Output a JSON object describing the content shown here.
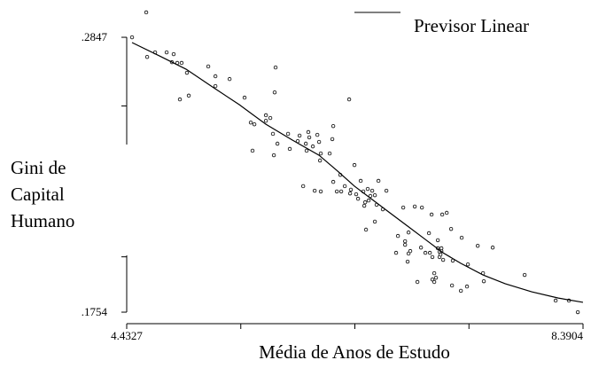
{
  "chart_data": {
    "type": "scatter",
    "xlabel": "Média de Anos de Estudo",
    "ylabel": [
      "Gini de",
      "Capital",
      "Humano"
    ],
    "xlim": [
      4.4327,
      8.3904
    ],
    "ylim": [
      0.171,
      0.296
    ],
    "xticks": [
      {
        "value": 4.4327,
        "label": "4.4327"
      },
      {
        "value": 5.4221,
        "label": null
      },
      {
        "value": 6.4115,
        "label": null
      },
      {
        "value": 7.401,
        "label": null
      },
      {
        "value": 8.3904,
        "label": "8.3904"
      }
    ],
    "yticks": [
      {
        "value": 0.2847,
        "label": ".2847"
      },
      {
        "value": 0.2574,
        "label": null
      },
      {
        "value": 0.1974,
        "label": null
      },
      {
        "value": 0.1754,
        "label": ".1754"
      }
    ],
    "series": [
      {
        "kind": "points",
        "color": "#000000",
        "x": [
          4.479,
          4.602,
          4.61,
          4.679,
          4.779,
          4.825,
          4.84,
          4.871,
          4.909,
          4.955,
          4.894,
          4.971,
          5.14,
          5.202,
          5.202,
          5.325,
          5.455,
          5.724,
          5.716,
          5.509,
          5.54,
          5.64,
          5.678,
          5.64,
          5.524,
          5.701,
          5.709,
          5.74,
          5.832,
          5.847,
          5.932,
          5.916,
          5.986,
          6.016,
          6.008,
          5.993,
          6.086,
          6.047,
          6.101,
          6.116,
          6.109,
          6.216,
          6.224,
          6.193,
          6.362,
          5.963,
          6.063,
          6.116,
          6.224,
          6.255,
          6.293,
          6.285,
          6.324,
          6.377,
          6.408,
          6.37,
          6.423,
          6.439,
          6.462,
          6.485,
          6.493,
          6.501,
          6.531,
          6.523,
          6.546,
          6.562,
          6.585,
          6.6,
          6.616,
          6.585,
          6.654,
          6.685,
          6.508,
          6.831,
          6.785,
          6.769,
          6.847,
          6.847,
          6.877,
          6.869,
          6.877,
          6.892,
          6.931,
          6.993,
          6.985,
          6.954,
          7.054,
          7.077,
          7.062,
          7.084,
          7.084,
          7.1,
          7.1,
          7.115,
          7.131,
          7.131,
          7.146,
          7.146,
          7.154,
          7.162,
          7.177,
          7.208,
          7.169,
          7.246,
          7.254,
          7.261,
          7.331,
          7.338,
          7.392,
          7.384,
          7.477,
          7.523,
          7.53,
          7.607,
          7.884,
          8.153,
          8.268,
          8.345,
          7.023,
          7.162
        ],
        "values": [
          0.2847,
          0.2946,
          0.2769,
          0.2787,
          0.2787,
          0.2748,
          0.278,
          0.2745,
          0.2745,
          0.2706,
          0.26,
          0.2615,
          0.2731,
          0.2692,
          0.2653,
          0.2681,
          0.2607,
          0.2727,
          0.2628,
          0.2508,
          0.2501,
          0.2537,
          0.2526,
          0.2515,
          0.2396,
          0.2463,
          0.2378,
          0.2424,
          0.2463,
          0.2403,
          0.2456,
          0.2434,
          0.2424,
          0.2449,
          0.247,
          0.2396,
          0.2459,
          0.2413,
          0.2431,
          0.2385,
          0.2357,
          0.2442,
          0.2494,
          0.2385,
          0.26,
          0.2255,
          0.2237,
          0.2234,
          0.2272,
          0.2234,
          0.2234,
          0.23,
          0.2255,
          0.2241,
          0.2339,
          0.2226,
          0.2223,
          0.2205,
          0.2276,
          0.2234,
          0.2177,
          0.2191,
          0.2198,
          0.2244,
          0.2216,
          0.2237,
          0.2219,
          0.2181,
          0.2276,
          0.2114,
          0.2163,
          0.2237,
          0.2082,
          0.217,
          0.2057,
          0.199,
          0.2036,
          0.2022,
          0.1987,
          0.1955,
          0.2071,
          0.1997,
          0.2174,
          0.217,
          0.2011,
          0.1874,
          0.2068,
          0.2142,
          0.199,
          0.1973,
          0.1884,
          0.1874,
          0.1909,
          0.1891,
          0.2008,
          0.204,
          0.1973,
          0.1994,
          0.1983,
          0.1997,
          0.1962,
          0.2149,
          0.2142,
          0.2085,
          0.186,
          0.1959,
          0.1839,
          0.205,
          0.1944,
          0.1856,
          0.2018,
          0.1909,
          0.1877,
          0.2011,
          0.1902,
          0.18,
          0.18,
          0.1754,
          0.199,
          0.2008
        ]
      },
      {
        "kind": "line",
        "name": "Previsor Linear",
        "color": "#000000",
        "x": [
          4.479,
          4.717,
          4.948,
          5.179,
          5.409,
          5.64,
          5.87,
          6.101,
          6.254,
          6.408,
          6.562,
          6.715,
          6.869,
          7.023,
          7.177,
          7.331,
          7.523,
          7.715,
          7.945,
          8.176,
          8.39
        ],
        "values": [
          0.2826,
          0.2773,
          0.272,
          0.2649,
          0.2579,
          0.2501,
          0.2438,
          0.2378,
          0.2318,
          0.2255,
          0.2202,
          0.2149,
          0.2096,
          0.2043,
          0.199,
          0.1948,
          0.1902,
          0.1867,
          0.1835,
          0.181,
          0.1793
        ]
      }
    ]
  }
}
